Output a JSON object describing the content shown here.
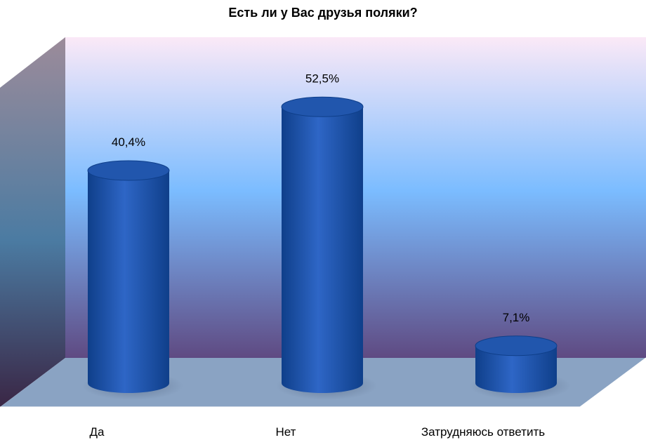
{
  "chart_data": {
    "type": "bar",
    "style": "3d-cylinder",
    "title": "Есть ли у Вас друзья поляки?",
    "xlabel": "",
    "ylabel": "",
    "categories": [
      "Да",
      "Нет",
      "Затрудняюсь ответить"
    ],
    "values": [
      40.4,
      52.5,
      7.1
    ],
    "data_labels": [
      "40,4%",
      "52,5%",
      "7,1%"
    ],
    "unit": "%",
    "ylim": [
      0,
      60
    ],
    "grid": false,
    "legend": "none",
    "colors": {
      "bar": "#2e66c6",
      "bar_dark": "#0f3f8a",
      "bar_top": "#2156ad",
      "floor": "#8aa3c3",
      "wall_top": "#fbe9f7",
      "wall_mid": "#7bbcff",
      "wall_bottom": "#5f4a82",
      "side_wall_top": "#9c8b9a",
      "side_wall_mid": "#4b7ba2",
      "side_wall_bottom": "#3a2645"
    }
  }
}
